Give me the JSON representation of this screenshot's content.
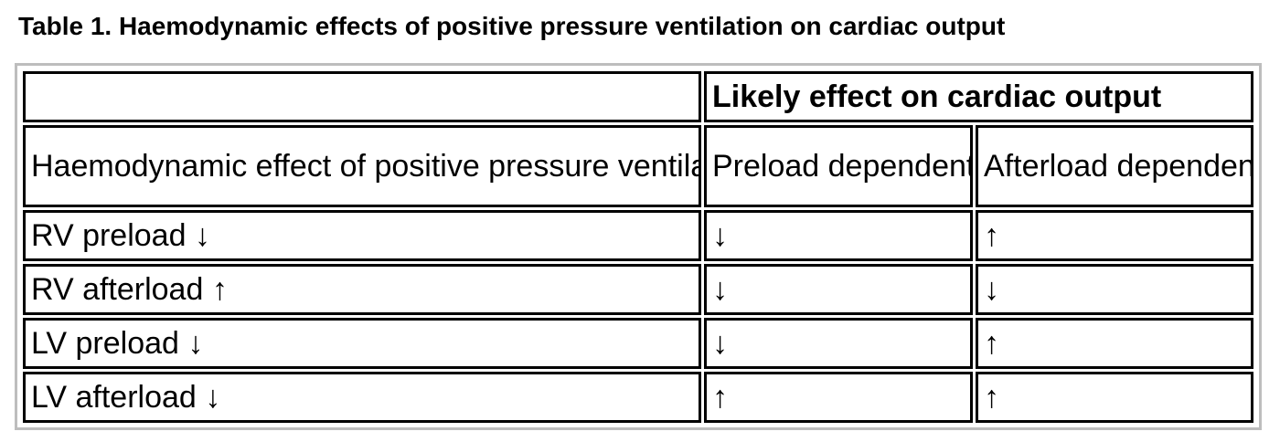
{
  "caption": "Table 1.  Haemodynamic effects of positive pressure ventilation on cardiac output",
  "table": {
    "group_header": "Likely effect on cardiac output",
    "col_headers": [
      "Haemodynamic effect of positive pressure ventilation",
      "Preload dependent",
      "Afterload dependent"
    ],
    "rows": [
      {
        "effect": "RV preload ↓",
        "preload": "↓",
        "afterload": "↑"
      },
      {
        "effect": "RV afterload ↑",
        "preload": "↓",
        "afterload": "↓"
      },
      {
        "effect": "LV preload ↓",
        "preload": "↓",
        "afterload": "↑"
      },
      {
        "effect": "LV afterload ↓",
        "preload": "↑",
        "afterload": "↑"
      }
    ]
  }
}
